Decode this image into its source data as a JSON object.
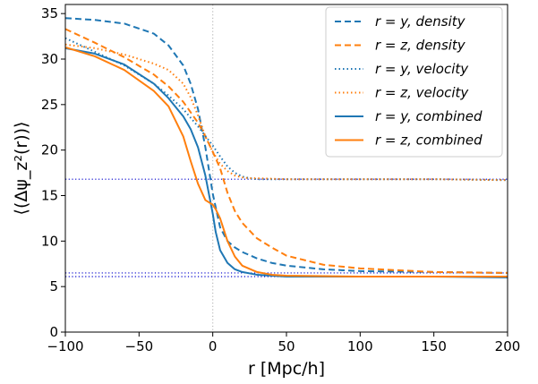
{
  "chart_data": {
    "type": "line",
    "title": "",
    "xlabel": "r [Mpc/h]",
    "ylabel": "⟨(Δψ_z²(r))⟩",
    "xlim": [
      -100,
      200
    ],
    "ylim": [
      0,
      36
    ],
    "x_ticks": [
      -100,
      -50,
      0,
      50,
      100,
      150,
      200
    ],
    "x_tick_labels": [
      "−100",
      "−50",
      "0",
      "50",
      "100",
      "150",
      "200"
    ],
    "y_ticks": [
      0,
      5,
      10,
      15,
      20,
      25,
      30,
      35
    ],
    "y_tick_labels": [
      "0",
      "5",
      "10",
      "15",
      "20",
      "25",
      "30",
      "35"
    ],
    "grid": false,
    "legend_position": "top-right",
    "reference_lines": [
      {
        "axis": "x",
        "value": 0,
        "style": "dotted",
        "color": "#bbbbbb"
      },
      {
        "axis": "y",
        "value": 16.8,
        "style": "dotted",
        "color": "#0000cc"
      },
      {
        "axis": "y",
        "value": 6.5,
        "style": "dotted",
        "color": "#0000cc"
      },
      {
        "axis": "y",
        "value": 6.1,
        "style": "dotted",
        "color": "#0000cc"
      }
    ],
    "series": [
      {
        "name": "r = y, density",
        "color": "#1f77b4",
        "linestyle": "dashed",
        "x": [
          -100,
          -80,
          -60,
          -40,
          -30,
          -20,
          -15,
          -10,
          -5,
          0,
          5,
          10,
          15,
          20,
          30,
          40,
          50,
          75,
          100,
          150,
          200
        ],
        "y": [
          34.5,
          34.3,
          33.9,
          32.8,
          31.5,
          29.3,
          27.3,
          24.5,
          20.3,
          15.2,
          11.5,
          10.0,
          9.3,
          8.8,
          8.1,
          7.6,
          7.3,
          6.9,
          6.7,
          6.6,
          6.5
        ]
      },
      {
        "name": "r = z, density",
        "color": "#ff7f0e",
        "linestyle": "dashed",
        "x": [
          -100,
          -80,
          -60,
          -40,
          -30,
          -20,
          -10,
          -5,
          0,
          5,
          10,
          15,
          20,
          30,
          40,
          50,
          75,
          100,
          150,
          200
        ],
        "y": [
          33.3,
          31.8,
          30.2,
          28.3,
          27.0,
          25.3,
          23.0,
          21.5,
          19.8,
          18.0,
          15.3,
          13.3,
          12.0,
          10.3,
          9.3,
          8.4,
          7.4,
          7.0,
          6.6,
          6.5
        ]
      },
      {
        "name": "r = y, velocity",
        "color": "#1f77b4",
        "linestyle": "dotted",
        "x": [
          -100,
          -80,
          -60,
          -40,
          -30,
          -20,
          -10,
          0,
          5,
          10,
          15,
          20,
          25,
          30,
          50,
          100,
          150,
          200
        ],
        "y": [
          32.3,
          30.8,
          29.3,
          27.3,
          26.0,
          24.5,
          22.6,
          20.5,
          19.3,
          18.2,
          17.5,
          17.1,
          16.9,
          16.8,
          16.8,
          16.8,
          16.8,
          16.7
        ]
      },
      {
        "name": "r = z, velocity",
        "color": "#ff7f0e",
        "linestyle": "dotted",
        "x": [
          -100,
          -80,
          -60,
          -40,
          -30,
          -20,
          -15,
          -10,
          -5,
          0,
          5,
          10,
          15,
          20,
          25,
          30,
          50,
          100,
          150,
          200
        ],
        "y": [
          31.6,
          31.2,
          30.5,
          29.5,
          28.8,
          27.3,
          25.8,
          23.8,
          21.5,
          19.8,
          18.5,
          17.7,
          17.2,
          17.0,
          16.9,
          16.9,
          16.8,
          16.8,
          16.8,
          16.7
        ]
      },
      {
        "name": "r = y, combined",
        "color": "#1f77b4",
        "linestyle": "solid",
        "x": [
          -100,
          -80,
          -60,
          -40,
          -30,
          -20,
          -15,
          -10,
          -5,
          0,
          2,
          5,
          10,
          15,
          20,
          30,
          40,
          50,
          100,
          150,
          200
        ],
        "y": [
          31.2,
          30.6,
          29.4,
          27.3,
          25.7,
          23.7,
          22.3,
          20.3,
          17.2,
          13.0,
          11.0,
          9.0,
          7.6,
          6.9,
          6.6,
          6.3,
          6.2,
          6.1,
          6.1,
          6.1,
          6.0
        ]
      },
      {
        "name": "r = z, combined",
        "color": "#ff7f0e",
        "linestyle": "solid",
        "x": [
          -100,
          -80,
          -60,
          -40,
          -30,
          -20,
          -15,
          -10,
          -5,
          0,
          2,
          5,
          10,
          15,
          20,
          30,
          40,
          50,
          100,
          150,
          200
        ],
        "y": [
          31.3,
          30.3,
          28.8,
          26.5,
          24.8,
          21.5,
          18.8,
          16.3,
          14.5,
          14.0,
          13.5,
          12.5,
          10.0,
          8.3,
          7.3,
          6.6,
          6.3,
          6.2,
          6.1,
          6.1,
          6.1
        ]
      }
    ]
  }
}
